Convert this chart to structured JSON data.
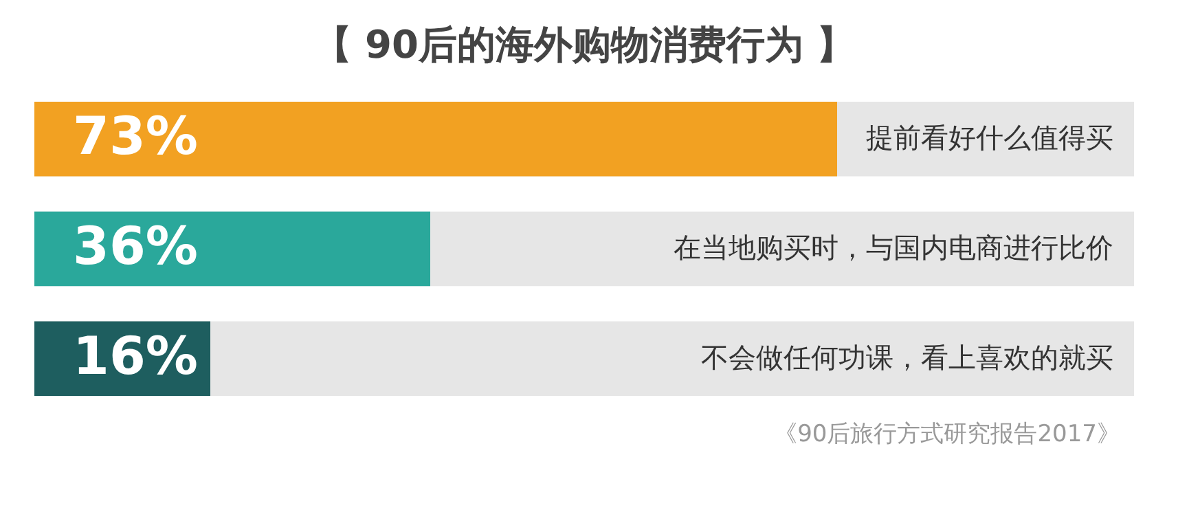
{
  "chart_data": {
    "type": "bar",
    "orientation": "horizontal",
    "title": "【 90后的海外购物消费行为 】",
    "categories": [
      "提前看好什么值得买",
      "在当地购买时，与国内电商进行比价",
      "不会做任何功课，看上喜欢的就买"
    ],
    "values": [
      73,
      36,
      16
    ],
    "colors": [
      "#f2a122",
      "#2aa89b",
      "#1e5e5f"
    ],
    "value_labels": [
      "73%",
      "36%",
      "16%"
    ],
    "xlim": [
      0,
      100
    ],
    "tick_labels": false,
    "annotations": [
      "《90后旅行方式研究报告2017》"
    ]
  }
}
